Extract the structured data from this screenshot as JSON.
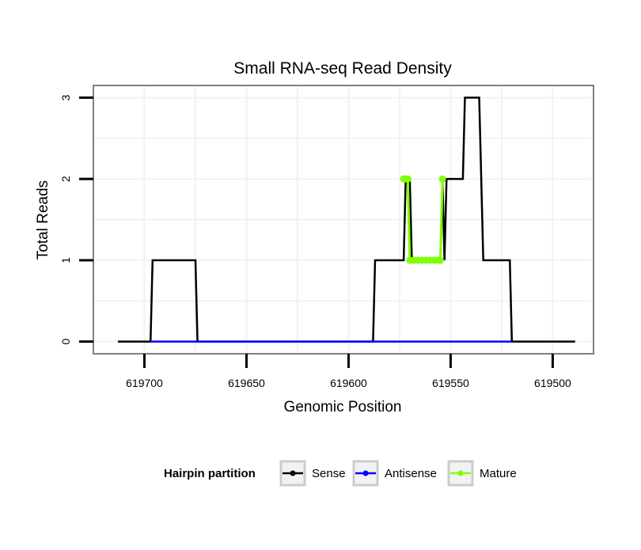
{
  "chart_data": {
    "type": "line",
    "title": "Small RNA-seq Read Density",
    "xlabel": "Genomic Position",
    "ylabel": "Total Reads",
    "xlim": [
      619725,
      619480
    ],
    "ylim": [
      -0.15,
      3.15
    ],
    "x_reversed": true,
    "x_ticks": [
      619700,
      619650,
      619600,
      619550,
      619500
    ],
    "y_ticks": [
      0,
      1,
      2,
      3
    ],
    "grid": true,
    "legend": {
      "title": "Hairpin partition",
      "position": "bottom",
      "entries": [
        {
          "label": "Sense",
          "color": "#000000"
        },
        {
          "label": "Antisense",
          "color": "#0000ff"
        },
        {
          "label": "Mature",
          "color": "#7fff00"
        }
      ]
    },
    "series": [
      {
        "name": "Sense",
        "color": "#000000",
        "points": [
          [
            619713,
            0
          ],
          [
            619697,
            0
          ],
          [
            619696,
            1
          ],
          [
            619675,
            1
          ],
          [
            619674,
            0
          ],
          [
            619588,
            0
          ],
          [
            619587,
            1
          ],
          [
            619573,
            1
          ],
          [
            619572,
            2
          ],
          [
            619570,
            2
          ],
          [
            619569,
            1
          ],
          [
            619555,
            1
          ],
          [
            619554,
            2
          ],
          [
            619553,
            1
          ],
          [
            619552,
            2
          ],
          [
            619544,
            2
          ],
          [
            619543,
            3
          ],
          [
            619536,
            3
          ],
          [
            619535,
            2
          ],
          [
            619534,
            1
          ],
          [
            619521,
            1
          ],
          [
            619520,
            0
          ],
          [
            619489,
            0
          ]
        ]
      },
      {
        "name": "Antisense",
        "color": "#0000ff",
        "points": [
          [
            619697,
            0
          ],
          [
            619674,
            0
          ],
          [
            619588,
            0
          ],
          [
            619520,
            0
          ]
        ]
      },
      {
        "name": "Mature",
        "color": "#7fff00",
        "points": [
          [
            619573,
            2
          ],
          [
            619572,
            2
          ],
          [
            619571,
            2
          ],
          [
            619570,
            1
          ],
          [
            619568,
            1
          ],
          [
            619566,
            1
          ],
          [
            619564,
            1
          ],
          [
            619562,
            1
          ],
          [
            619560,
            1
          ],
          [
            619558,
            1
          ],
          [
            619556,
            1
          ],
          [
            619555,
            1
          ],
          [
            619554,
            2
          ]
        ]
      }
    ]
  }
}
